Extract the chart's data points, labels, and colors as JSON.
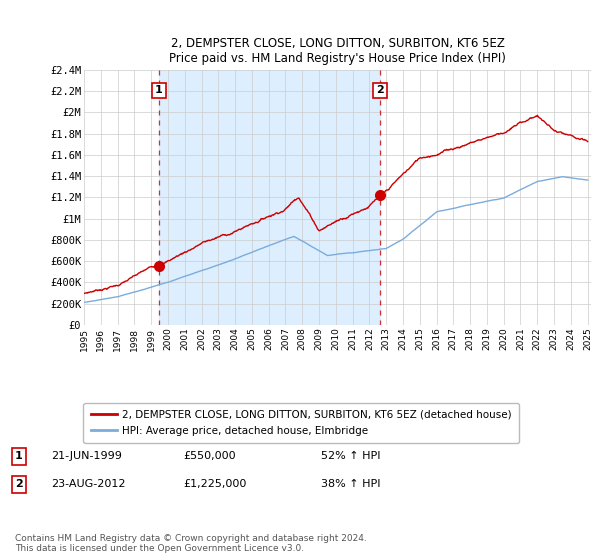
{
  "title": "2, DEMPSTER CLOSE, LONG DITTON, SURBITON, KT6 5EZ",
  "subtitle": "Price paid vs. HM Land Registry's House Price Index (HPI)",
  "ylim": [
    0,
    2400000
  ],
  "yticks": [
    0,
    200000,
    400000,
    600000,
    800000,
    1000000,
    1200000,
    1400000,
    1600000,
    1800000,
    2000000,
    2200000,
    2400000
  ],
  "ytick_labels": [
    "£0",
    "£200K",
    "£400K",
    "£600K",
    "£800K",
    "£1M",
    "£1.2M",
    "£1.4M",
    "£1.6M",
    "£1.8M",
    "£2M",
    "£2.2M",
    "£2.4M"
  ],
  "xtick_years": [
    1995,
    1996,
    1997,
    1998,
    1999,
    2000,
    2001,
    2002,
    2003,
    2004,
    2005,
    2006,
    2007,
    2008,
    2009,
    2010,
    2011,
    2012,
    2013,
    2014,
    2015,
    2016,
    2017,
    2018,
    2019,
    2020,
    2021,
    2022,
    2023,
    2024,
    2025
  ],
  "house_color": "#cc0000",
  "hpi_color": "#7aacdc",
  "shading_color": "#ddeeff",
  "sale1_x": 1999.47,
  "sale1_y": 550000,
  "sale2_x": 2012.64,
  "sale2_y": 1225000,
  "legend_house": "2, DEMPSTER CLOSE, LONG DITTON, SURBITON, KT6 5EZ (detached house)",
  "legend_hpi": "HPI: Average price, detached house, Elmbridge",
  "annotation1_date": "21-JUN-1999",
  "annotation1_price": "£550,000",
  "annotation1_hpi": "52% ↑ HPI",
  "annotation2_date": "23-AUG-2012",
  "annotation2_price": "£1,225,000",
  "annotation2_hpi": "38% ↑ HPI",
  "footer": "Contains HM Land Registry data © Crown copyright and database right 2024.\nThis data is licensed under the Open Government Licence v3.0.",
  "background_color": "#ffffff",
  "grid_color": "#cccccc"
}
